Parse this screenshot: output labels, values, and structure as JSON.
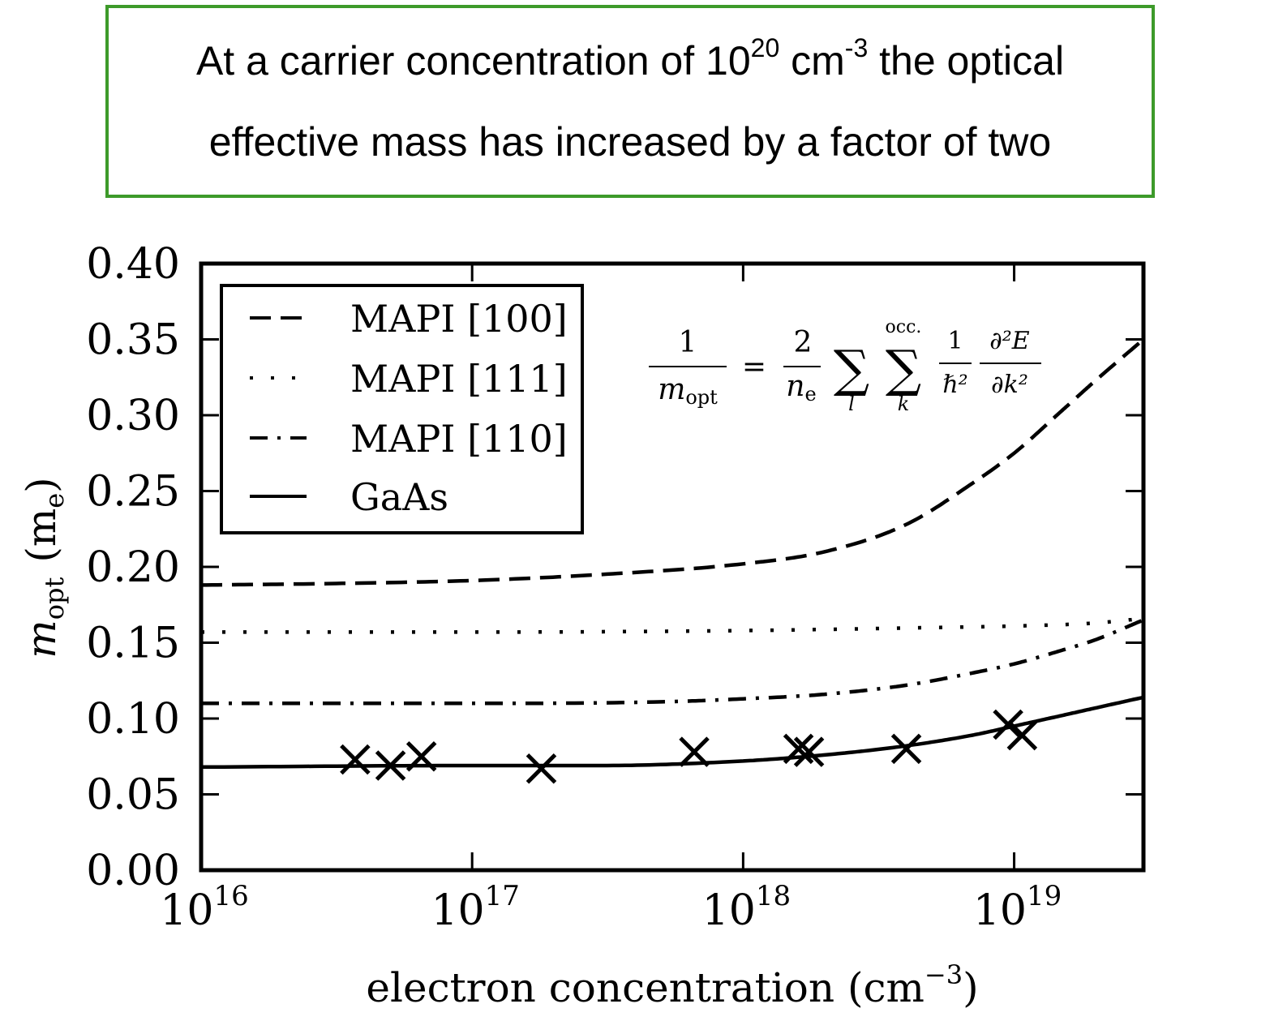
{
  "callout": {
    "line1_a": "At a carrier concentration of 10",
    "line1_sup1": "20",
    "line1_b": " cm",
    "line1_sup2": "-3",
    "line1_c": " the optical",
    "line2": "effective mass has increased by a factor of two",
    "border_color": "#3d9a2a"
  },
  "chart_data": {
    "type": "line",
    "xscale": "log",
    "xlim": [
      1e+16,
      3e+19
    ],
    "ylim": [
      0.0,
      0.4
    ],
    "xlabel": "electron concentration (cm",
    "xlabel_exp": "−3",
    "xlabel_close": ")",
    "ylabel_main": "m",
    "ylabel_sub": "opt",
    "ylabel_unit": "(m",
    "ylabel_unit_sub": "e",
    "ylabel_close": ")",
    "x_ticks": [
      {
        "value": 1e+16,
        "base": "10",
        "exp": "16"
      },
      {
        "value": 1e+17,
        "base": "10",
        "exp": "17"
      },
      {
        "value": 1e+18,
        "base": "10",
        "exp": "18"
      },
      {
        "value": 1e+19,
        "base": "10",
        "exp": "19"
      }
    ],
    "y_ticks": [
      {
        "value": 0.0,
        "label": "0.00"
      },
      {
        "value": 0.05,
        "label": "0.05"
      },
      {
        "value": 0.1,
        "label": "0.10"
      },
      {
        "value": 0.15,
        "label": "0.15"
      },
      {
        "value": 0.2,
        "label": "0.20"
      },
      {
        "value": 0.25,
        "label": "0.25"
      },
      {
        "value": 0.3,
        "label": "0.30"
      },
      {
        "value": 0.35,
        "label": "0.35"
      },
      {
        "value": 0.4,
        "label": "0.40"
      }
    ],
    "legend_position": "top-left",
    "series": [
      {
        "name": "MAPI [100]",
        "style": "dashed",
        "x": [
          1e+16,
          3e+16,
          1e+17,
          3e+17,
          1e+18,
          2e+18,
          4e+18,
          7e+18,
          1e+19,
          1.5e+19,
          2e+19,
          3e+19
        ],
        "y": [
          0.188,
          0.189,
          0.191,
          0.195,
          0.202,
          0.21,
          0.228,
          0.255,
          0.275,
          0.303,
          0.323,
          0.35
        ]
      },
      {
        "name": "MAPI [111]",
        "style": "dotted",
        "x": [
          1e+16,
          1e+17,
          1e+18,
          5e+18,
          1e+19,
          2e+19,
          3e+19
        ],
        "y": [
          0.157,
          0.157,
          0.158,
          0.16,
          0.161,
          0.163,
          0.166
        ]
      },
      {
        "name": "MAPI [110]",
        "style": "dashdot",
        "x": [
          1e+16,
          1e+17,
          5e+17,
          1e+18,
          2e+18,
          4e+18,
          7e+18,
          1e+19,
          1.5e+19,
          2e+19,
          3e+19
        ],
        "y": [
          0.11,
          0.11,
          0.111,
          0.113,
          0.116,
          0.122,
          0.13,
          0.136,
          0.145,
          0.152,
          0.165
        ]
      },
      {
        "name": "GaAs",
        "style": "solid",
        "x": [
          1e+16,
          1e+17,
          3e+17,
          1e+18,
          2e+18,
          4e+18,
          7e+18,
          1e+19,
          1.5e+19,
          2e+19,
          3e+19
        ],
        "y": [
          0.068,
          0.069,
          0.069,
          0.072,
          0.076,
          0.082,
          0.089,
          0.095,
          0.102,
          0.107,
          0.114
        ]
      }
    ],
    "markers": {
      "name": "GaAs data",
      "symbol": "x",
      "x": [
        3.7e+16,
        5e+16,
        6.5e+16,
        1.8e+17,
        6.6e+17,
        1.6e+18,
        1.75e+18,
        4e+18,
        9.5e+18,
        1.07e+19
      ],
      "y": [
        0.073,
        0.069,
        0.075,
        0.067,
        0.078,
        0.08,
        0.078,
        0.08,
        0.096,
        0.089
      ]
    },
    "equation": {
      "lhs_num": "1",
      "lhs_den_main": "m",
      "lhs_den_sub": "opt",
      "equals": "=",
      "coef_num": "2",
      "coef_den_main": "n",
      "coef_den_sub": "e",
      "sum_symbol": "∑",
      "sum1_index": "l",
      "sum2_index": "k",
      "sum2_upper": "occ.",
      "frac1_num": "1",
      "frac1_den": "ℏ²",
      "frac2_num": "∂²E",
      "frac2_den": "∂k²"
    }
  }
}
